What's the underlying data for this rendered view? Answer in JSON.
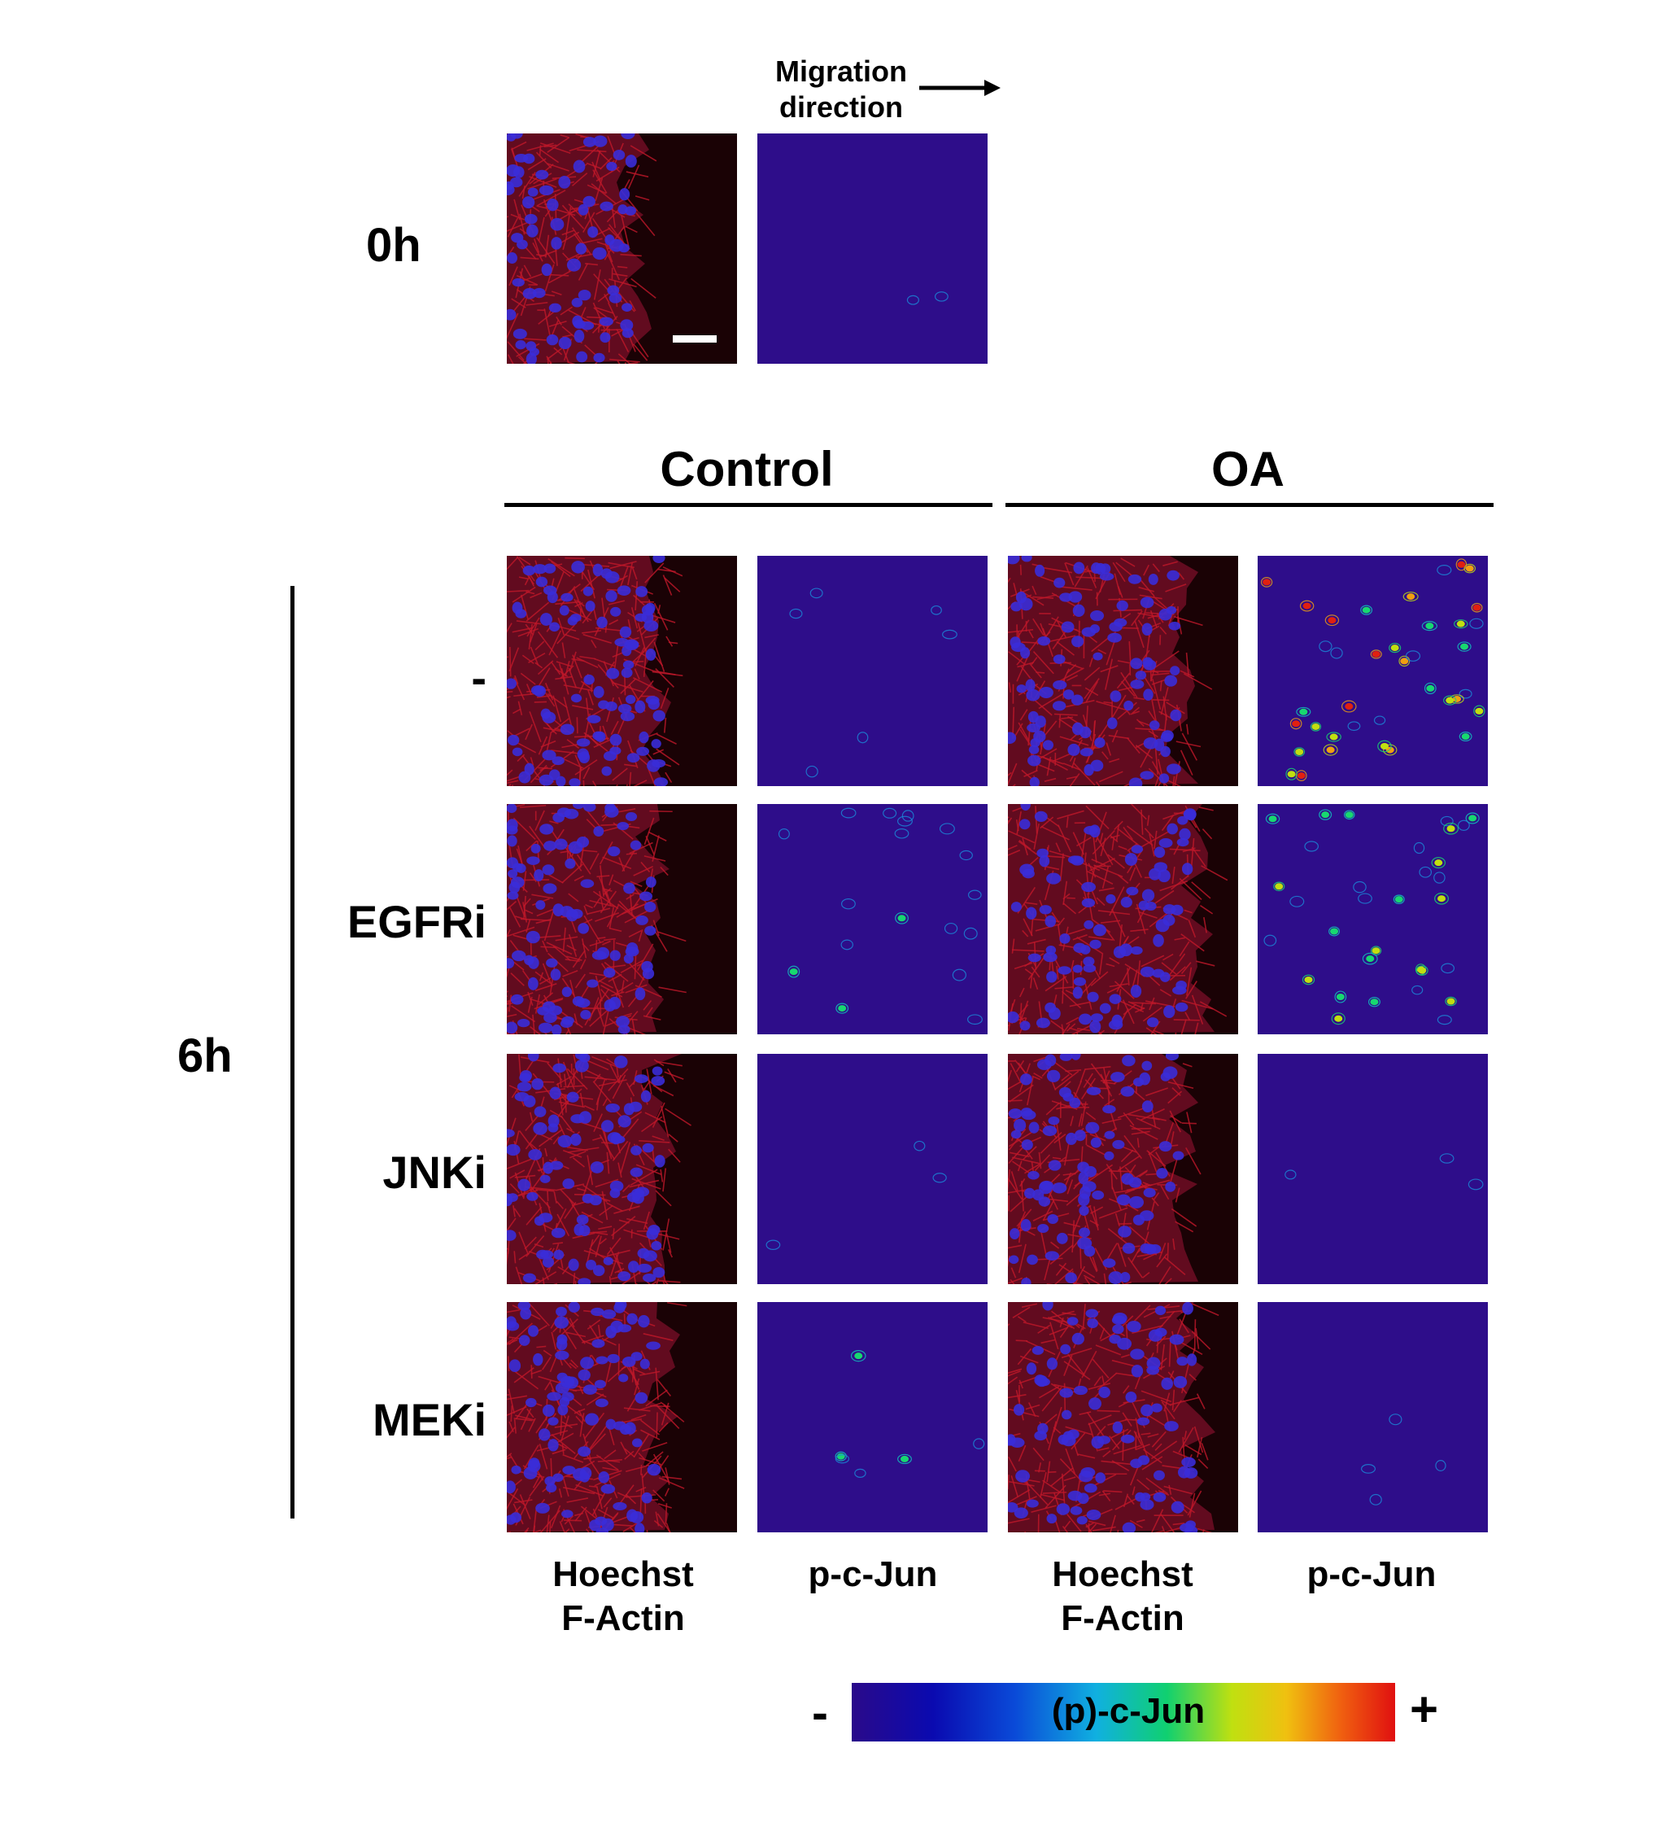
{
  "migration": {
    "line1": "Migration",
    "line2": "direction"
  },
  "time_labels": {
    "t0": "0h",
    "t6": "6h"
  },
  "group_headers": {
    "control": "Control",
    "oa": "OA"
  },
  "row_labels": [
    "-",
    "EGFRi",
    "JNKi",
    "MEKi"
  ],
  "column_labels": [
    {
      "line1": "Hoechst",
      "line2": "F-Actin"
    },
    {
      "line1": "p-c-Jun",
      "line2": ""
    },
    {
      "line1": "Hoechst",
      "line2": "F-Actin"
    },
    {
      "line1": "p-c-Jun",
      "line2": ""
    }
  ],
  "colorbar": {
    "label": "(p)-c-Jun",
    "min_symbol": "-",
    "max_symbol": "+"
  },
  "colors": {
    "pjun_background": "#2e0d8a",
    "actin_dark": "#1a0205",
    "actin_red": "#c0182a",
    "nucleus_blue": "#3a2cd8"
  }
}
